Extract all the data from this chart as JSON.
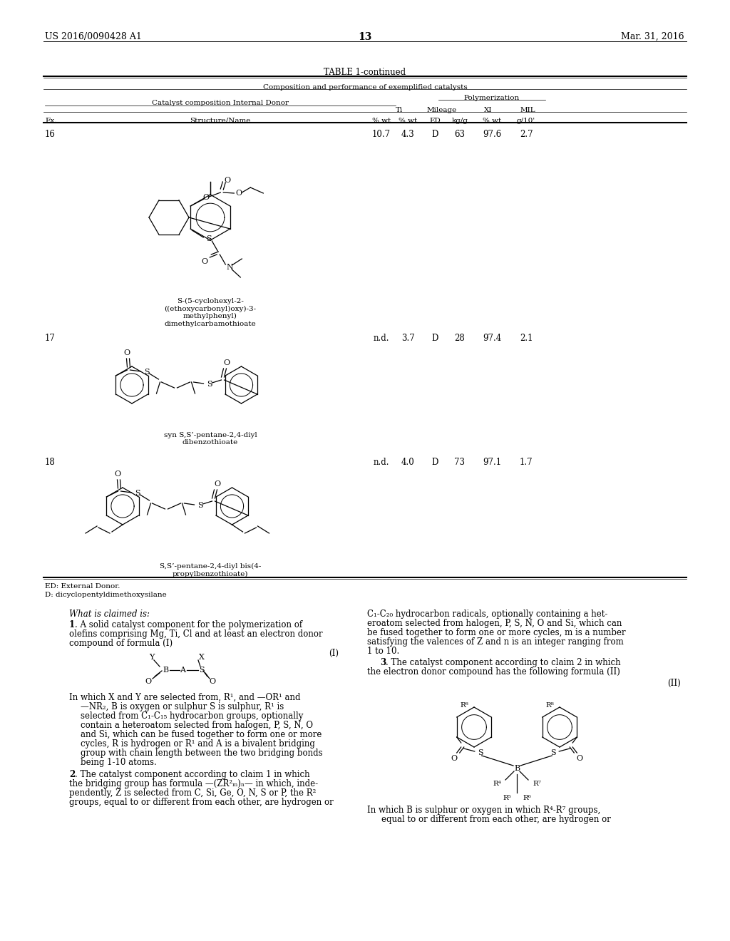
{
  "page_number": "13",
  "patent_number": "US 2016/0090428 A1",
  "patent_date": "Mar. 31, 2016",
  "table_title": "TABLE 1-continued",
  "table_subtitle": "Composition and performance of exemplified catalysts",
  "bg_color": "#ffffff",
  "footnote1": "ED: External Donor.",
  "footnote2": "D: dicyclopentyldimethoxysilane",
  "compound16_name": "S-(5-cyclohexyl-2-\n((ethoxycarbonyl)oxy)-3-\nmethylphenyl)\ndimethylcarbamothioate",
  "compound17_name": "syn S,S’-pentane-2,4-diyl\ndibenzothioate",
  "compound18_name": "S,S’-pentane-2,4-diyl bis(4-\npropylbenzothioate)"
}
